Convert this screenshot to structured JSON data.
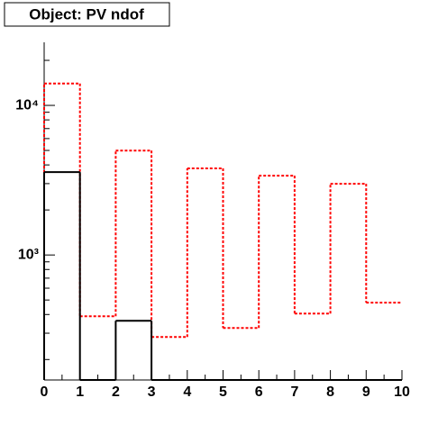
{
  "chart_data": {
    "type": "histogram",
    "title": "Object: PV ndof",
    "bins": [
      0,
      1,
      2,
      3,
      4,
      5,
      6,
      7,
      8,
      9,
      10
    ],
    "series": [
      {
        "color": "#ff0000",
        "dashed": true,
        "values": [
          14000,
          389,
          4990,
          283,
          3790,
          325,
          3390,
          406,
          2990,
          480
        ]
      },
      {
        "color": "#000000",
        "dashed": false,
        "values": [
          3580,
          0,
          363,
          0,
          0,
          0,
          0,
          0,
          0,
          0
        ]
      }
    ],
    "xlim": [
      0,
      10
    ],
    "xticks": [
      0,
      1,
      2,
      3,
      4,
      5,
      6,
      7,
      8,
      9,
      10
    ],
    "ylim": [
      146,
      26400
    ],
    "ylog": true,
    "yticks": [
      {
        "value": 1000,
        "label": "10³"
      },
      {
        "value": 10000,
        "label": "10⁴"
      }
    ]
  }
}
